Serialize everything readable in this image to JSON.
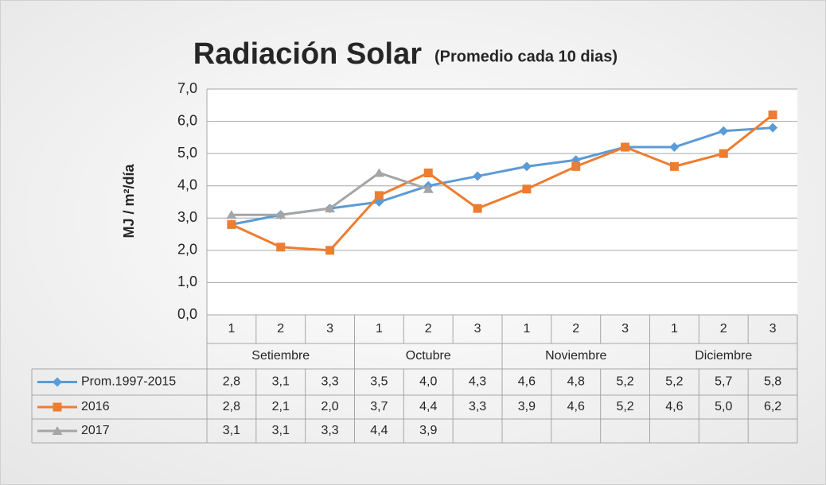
{
  "chart_data": {
    "type": "line",
    "title": "Radiación Solar",
    "subtitle": "(Promedio cada 10 dias)",
    "y_label": "MJ / m²/día",
    "categories": [
      "1",
      "2",
      "3",
      "1",
      "2",
      "3",
      "1",
      "2",
      "3",
      "1",
      "2",
      "3"
    ],
    "groups": [
      "Setiembre",
      "Octubre",
      "Noviembre",
      "Diciembre"
    ],
    "series": [
      {
        "name": "Prom.1997-2015",
        "color": "#5b9bd5",
        "marker": "diamond",
        "values": [
          2.8,
          3.1,
          3.3,
          3.5,
          4.0,
          4.3,
          4.6,
          4.8,
          5.2,
          5.2,
          5.7,
          5.8
        ],
        "value_labels": [
          "2,8",
          "3,1",
          "3,3",
          "3,5",
          "4,0",
          "4,3",
          "4,6",
          "4,8",
          "5,2",
          "5,2",
          "5,7",
          "5,8"
        ]
      },
      {
        "name": "2016",
        "color": "#ed7d31",
        "marker": "square",
        "values": [
          2.8,
          2.1,
          2.0,
          3.7,
          4.4,
          3.3,
          3.9,
          4.6,
          5.2,
          4.6,
          5.0,
          6.2
        ],
        "value_labels": [
          "2,8",
          "2,1",
          "2,0",
          "3,7",
          "4,4",
          "3,3",
          "3,9",
          "4,6",
          "5,2",
          "4,6",
          "5,0",
          "6,2"
        ]
      },
      {
        "name": "2017",
        "color": "#a5a5a5",
        "marker": "triangle",
        "values": [
          3.1,
          3.1,
          3.3,
          4.4,
          3.9,
          null,
          null,
          null,
          null,
          null,
          null,
          null
        ],
        "value_labels": [
          "3,1",
          "3,1",
          "3,3",
          "4,4",
          "3,9",
          null,
          null,
          null,
          null,
          null,
          null,
          null
        ]
      }
    ],
    "ylim": [
      0,
      7
    ],
    "yticks": [
      {
        "value": 0,
        "label": "0,0"
      },
      {
        "value": 1,
        "label": "1,0"
      },
      {
        "value": 2,
        "label": "2,0"
      },
      {
        "value": 3,
        "label": "3,0"
      },
      {
        "value": 4,
        "label": "4,0"
      },
      {
        "value": 5,
        "label": "5,0"
      },
      {
        "value": 6,
        "label": "6,0"
      },
      {
        "value": 7,
        "label": "7,0"
      }
    ],
    "grid": true
  }
}
